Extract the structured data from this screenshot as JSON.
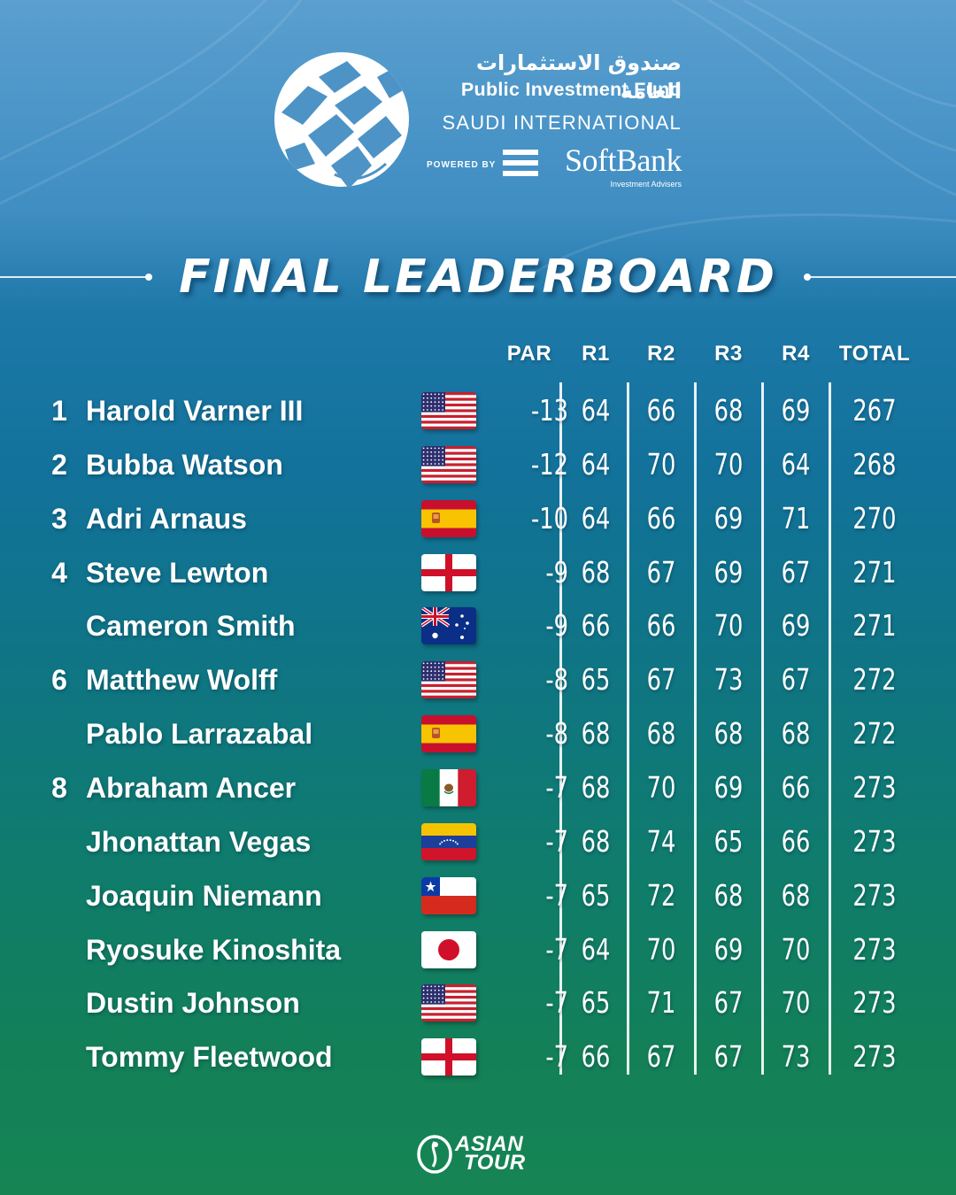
{
  "sponsor": {
    "arabic_name": "صندوق الاستثمارات العامة",
    "english_name": "Public Investment Fund",
    "event": "SAUDI INTERNATIONAL",
    "powered_by": "POWERED BY",
    "partner": "SoftBank",
    "partner_sub": "Investment Advisers"
  },
  "title": "FINAL LEADERBOARD",
  "columns": {
    "par": "PAR",
    "r1": "R1",
    "r2": "R2",
    "r3": "R3",
    "r4": "R4",
    "total": "TOTAL"
  },
  "players": [
    {
      "pos": "1",
      "name": "Harold Varner III",
      "flag": "usa-flag-icon",
      "par": "-13",
      "r1": "64",
      "r2": "66",
      "r3": "68",
      "r4": "69",
      "total": "267"
    },
    {
      "pos": "2",
      "name": "Bubba Watson",
      "flag": "usa-flag-icon",
      "par": "-12",
      "r1": "64",
      "r2": "70",
      "r3": "70",
      "r4": "64",
      "total": "268"
    },
    {
      "pos": "3",
      "name": "Adri Arnaus",
      "flag": "spain-flag-icon",
      "par": "-10",
      "r1": "64",
      "r2": "66",
      "r3": "69",
      "r4": "71",
      "total": "270"
    },
    {
      "pos": "4",
      "name": "Steve Lewton",
      "flag": "england-flag-icon",
      "par": "-9",
      "r1": "68",
      "r2": "67",
      "r3": "69",
      "r4": "67",
      "total": "271"
    },
    {
      "pos": "",
      "name": "Cameron Smith",
      "flag": "australia-flag-icon",
      "par": "-9",
      "r1": "66",
      "r2": "66",
      "r3": "70",
      "r4": "69",
      "total": "271"
    },
    {
      "pos": "6",
      "name": "Matthew Wolff",
      "flag": "usa-flag-icon",
      "par": "-8",
      "r1": "65",
      "r2": "67",
      "r3": "73",
      "r4": "67",
      "total": "272"
    },
    {
      "pos": "",
      "name": "Pablo Larrazabal",
      "flag": "spain-flag-icon",
      "par": "-8",
      "r1": "68",
      "r2": "68",
      "r3": "68",
      "r4": "68",
      "total": "272"
    },
    {
      "pos": "8",
      "name": "Abraham Ancer",
      "flag": "mexico-flag-icon",
      "par": "-7",
      "r1": "68",
      "r2": "70",
      "r3": "69",
      "r4": "66",
      "total": "273"
    },
    {
      "pos": "",
      "name": "Jhonattan Vegas",
      "flag": "venezuela-flag-icon",
      "par": "-7",
      "r1": "68",
      "r2": "74",
      "r3": "65",
      "r4": "66",
      "total": "273"
    },
    {
      "pos": "",
      "name": "Joaquin Niemann",
      "flag": "chile-flag-icon",
      "par": "-7",
      "r1": "65",
      "r2": "72",
      "r3": "68",
      "r4": "68",
      "total": "273"
    },
    {
      "pos": "",
      "name": "Ryosuke Kinoshita",
      "flag": "japan-flag-icon",
      "par": "-7",
      "r1": "64",
      "r2": "70",
      "r3": "69",
      "r4": "70",
      "total": "273"
    },
    {
      "pos": "",
      "name": "Dustin Johnson",
      "flag": "usa-flag-icon",
      "par": "-7",
      "r1": "65",
      "r2": "71",
      "r3": "67",
      "r4": "70",
      "total": "273"
    },
    {
      "pos": "",
      "name": "Tommy Fleetwood",
      "flag": "england-flag-icon",
      "par": "-7",
      "r1": "66",
      "r2": "67",
      "r3": "67",
      "r4": "73",
      "total": "273"
    }
  ],
  "footer": {
    "logo_line1": "ASIAN",
    "logo_line2": "TOUR"
  },
  "colors": {
    "top": "#5a9fcf",
    "middle": "#12729a",
    "bottom": "#168553"
  }
}
